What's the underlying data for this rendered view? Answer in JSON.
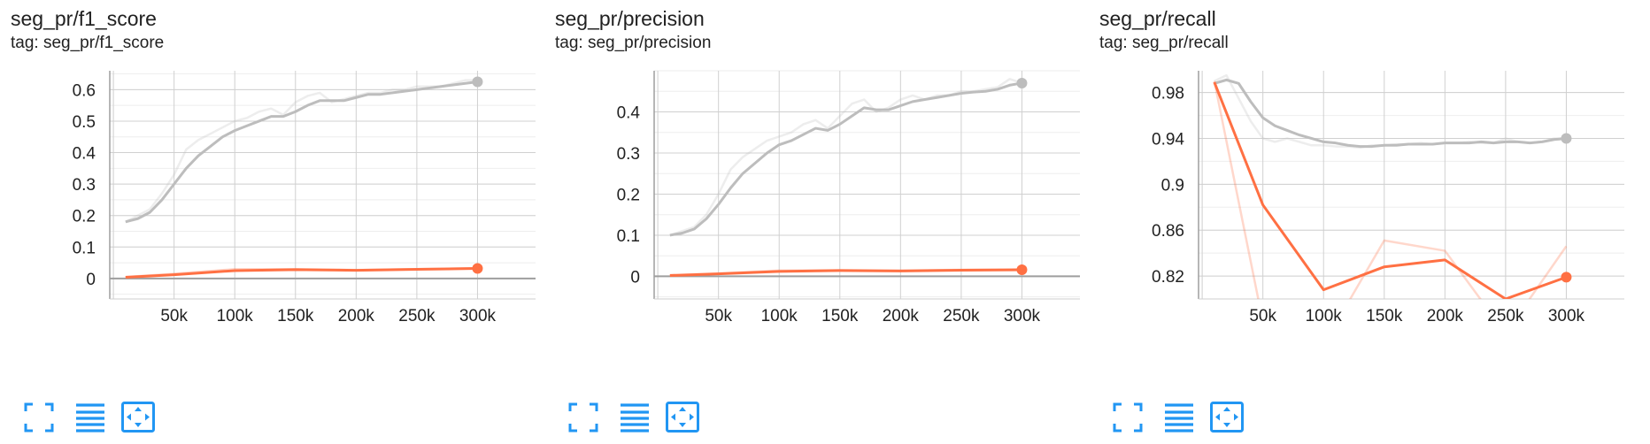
{
  "cards": [
    {
      "title": "seg_pr/f1_score",
      "tag": "tag: seg_pr/f1_score",
      "chart_data": {
        "type": "line",
        "xlim": [
          -3000,
          350000
        ],
        "ylim": [
          -0.065,
          0.66
        ],
        "x_ticks": [
          50000,
          100000,
          150000,
          200000,
          250000,
          300000
        ],
        "x_tick_labels": [
          "50k",
          "100k",
          "150k",
          "200k",
          "250k",
          "300k"
        ],
        "y_ticks": [
          0,
          0.1,
          0.2,
          0.3,
          0.4,
          0.5,
          0.6
        ],
        "y_tick_labels": [
          "0",
          "0.1",
          "0.2",
          "0.3",
          "0.4",
          "0.5",
          "0.6"
        ],
        "grid": true,
        "series": [
          {
            "color": "#bdbdbd",
            "raw_x": [
              10000,
              20000,
              30000,
              40000,
              50000,
              60000,
              70000,
              80000,
              90000,
              100000,
              110000,
              120000,
              130000,
              140000,
              150000,
              160000,
              170000,
              180000,
              190000,
              200000,
              210000,
              220000,
              230000,
              240000,
              250000,
              260000,
              270000,
              280000,
              290000,
              300000
            ],
            "raw_y": [
              0.18,
              0.2,
              0.22,
              0.27,
              0.33,
              0.41,
              0.44,
              0.46,
              0.48,
              0.5,
              0.51,
              0.53,
              0.54,
              0.52,
              0.56,
              0.58,
              0.59,
              0.56,
              0.57,
              0.58,
              0.59,
              0.59,
              0.6,
              0.6,
              0.61,
              0.61,
              0.61,
              0.62,
              0.63,
              0.63
            ],
            "smoothed_y": [
              0.18,
              0.19,
              0.21,
              0.25,
              0.3,
              0.35,
              0.39,
              0.42,
              0.45,
              0.47,
              0.485,
              0.5,
              0.515,
              0.515,
              0.53,
              0.55,
              0.565,
              0.565,
              0.565,
              0.575,
              0.585,
              0.585,
              0.59,
              0.595,
              0.6,
              0.605,
              0.61,
              0.615,
              0.62,
              0.625
            ]
          },
          {
            "color": "#ff7043",
            "raw_x": [
              10000,
              50000,
              100000,
              150000,
              200000,
              250000,
              300000
            ],
            "raw_y": [
              0.005,
              0.015,
              0.03,
              0.03,
              0.027,
              0.03,
              0.033
            ],
            "smoothed_y": [
              0.004,
              0.012,
              0.025,
              0.028,
              0.026,
              0.029,
              0.032
            ]
          }
        ]
      }
    },
    {
      "title": "seg_pr/precision",
      "tag": "tag: seg_pr/precision",
      "chart_data": {
        "type": "line",
        "xlim": [
          -3000,
          350000
        ],
        "ylim": [
          -0.055,
          0.5
        ],
        "x_ticks": [
          50000,
          100000,
          150000,
          200000,
          250000,
          300000
        ],
        "x_tick_labels": [
          "50k",
          "100k",
          "150k",
          "200k",
          "250k",
          "300k"
        ],
        "y_ticks": [
          0,
          0.1,
          0.2,
          0.3,
          0.4
        ],
        "y_tick_labels": [
          "0",
          "0.1",
          "0.2",
          "0.3",
          "0.4"
        ],
        "grid": true,
        "series": [
          {
            "color": "#bdbdbd",
            "raw_x": [
              10000,
              20000,
              30000,
              40000,
              50000,
              60000,
              70000,
              80000,
              90000,
              100000,
              110000,
              120000,
              130000,
              140000,
              150000,
              160000,
              170000,
              180000,
              190000,
              200000,
              210000,
              220000,
              230000,
              240000,
              250000,
              260000,
              270000,
              280000,
              290000,
              300000
            ],
            "raw_y": [
              0.1,
              0.11,
              0.12,
              0.15,
              0.2,
              0.26,
              0.29,
              0.31,
              0.33,
              0.34,
              0.35,
              0.37,
              0.38,
              0.36,
              0.39,
              0.42,
              0.43,
              0.4,
              0.41,
              0.43,
              0.44,
              0.43,
              0.44,
              0.44,
              0.45,
              0.45,
              0.455,
              0.46,
              0.48,
              0.47
            ],
            "smoothed_y": [
              0.1,
              0.105,
              0.115,
              0.14,
              0.175,
              0.215,
              0.25,
              0.275,
              0.3,
              0.32,
              0.33,
              0.345,
              0.36,
              0.355,
              0.37,
              0.39,
              0.41,
              0.405,
              0.405,
              0.415,
              0.425,
              0.43,
              0.435,
              0.44,
              0.445,
              0.448,
              0.45,
              0.455,
              0.465,
              0.47
            ]
          },
          {
            "color": "#ff7043",
            "raw_x": [
              10000,
              50000,
              100000,
              150000,
              200000,
              250000,
              300000
            ],
            "raw_y": [
              0.003,
              0.007,
              0.014,
              0.015,
              0.014,
              0.016,
              0.017
            ],
            "smoothed_y": [
              0.002,
              0.006,
              0.012,
              0.014,
              0.013,
              0.015,
              0.016
            ]
          }
        ]
      }
    },
    {
      "title": "seg_pr/recall",
      "tag": "tag: seg_pr/recall",
      "chart_data": {
        "type": "line",
        "xlim": [
          -3000,
          350000
        ],
        "ylim": [
          0.8,
          0.999
        ],
        "x_ticks": [
          50000,
          100000,
          150000,
          200000,
          250000,
          300000
        ],
        "x_tick_labels": [
          "50k",
          "100k",
          "150k",
          "200k",
          "250k",
          "300k"
        ],
        "y_ticks": [
          0.82,
          0.86,
          0.9,
          0.94,
          0.98
        ],
        "y_tick_labels": [
          "0.82",
          "0.86",
          "0.9",
          "0.94",
          "0.98"
        ],
        "grid": true,
        "series": [
          {
            "color": "#bdbdbd",
            "raw_x": [
              10000,
              20000,
              30000,
              40000,
              50000,
              60000,
              70000,
              80000,
              90000,
              100000,
              110000,
              120000,
              130000,
              140000,
              150000,
              160000,
              170000,
              180000,
              190000,
              200000,
              210000,
              220000,
              230000,
              240000,
              250000,
              260000,
              270000,
              280000,
              290000,
              300000
            ],
            "raw_y": [
              0.99,
              0.995,
              0.975,
              0.955,
              0.94,
              0.937,
              0.94,
              0.937,
              0.934,
              0.934,
              0.933,
              0.933,
              0.932,
              0.934,
              0.934,
              0.935,
              0.935,
              0.936,
              0.935,
              0.936,
              0.936,
              0.937,
              0.936,
              0.936,
              0.94,
              0.937,
              0.936,
              0.937,
              0.94,
              0.94
            ],
            "smoothed_y": [
              0.988,
              0.991,
              0.988,
              0.972,
              0.958,
              0.951,
              0.947,
              0.943,
              0.94,
              0.937,
              0.936,
              0.934,
              0.933,
              0.933,
              0.934,
              0.934,
              0.935,
              0.935,
              0.935,
              0.936,
              0.936,
              0.936,
              0.937,
              0.936,
              0.937,
              0.937,
              0.936,
              0.937,
              0.939,
              0.94
            ]
          },
          {
            "color": "#ff7043",
            "raw_x": [
              10000,
              50000,
              100000,
              150000,
              200000,
              250000,
              300000
            ],
            "raw_y": [
              0.99,
              0.78,
              0.76,
              0.851,
              0.842,
              0.77,
              0.846
            ],
            "smoothed_y": [
              0.989,
              0.882,
              0.808,
              0.828,
              0.834,
              0.8,
              0.819
            ]
          }
        ]
      }
    }
  ],
  "toolbar_icons": [
    "fullscreen-icon",
    "data-table-icon",
    "fit-domain-icon"
  ],
  "colors": {
    "accent_blue": "#2196f3",
    "run_gray": "#bdbdbd",
    "run_orange": "#ff7043"
  }
}
